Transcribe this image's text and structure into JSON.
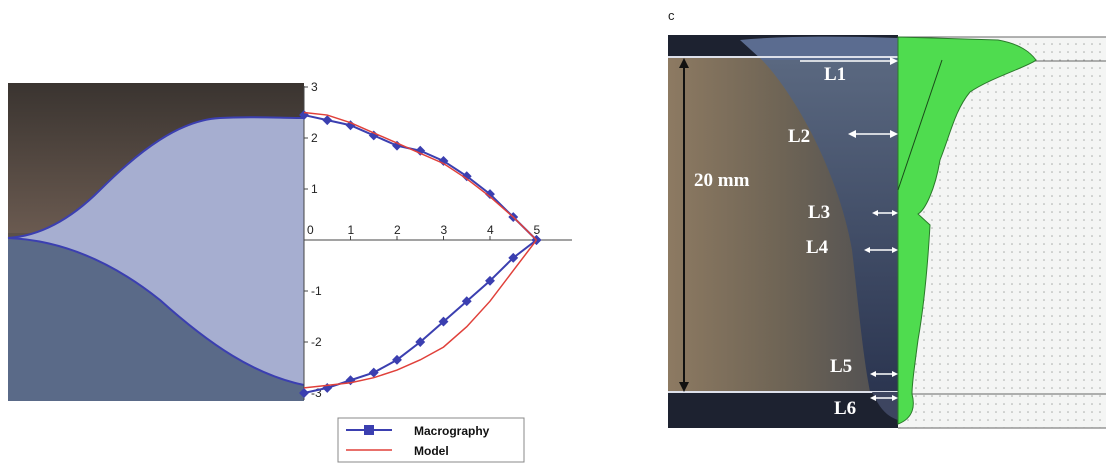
{
  "left_figure": {
    "legend": {
      "macrography_label": "Macrography",
      "model_label": "Model"
    },
    "x_ticks": [
      "0",
      "1",
      "2",
      "3",
      "4",
      "5"
    ],
    "y_ticks": [
      "3",
      "2",
      "1",
      "-1",
      "-2",
      "-3"
    ],
    "colors": {
      "macrography": "#3b3fb0",
      "model": "#e0403a"
    }
  },
  "right_figure": {
    "panel_letter": "c",
    "thickness_label": "20 mm",
    "markers": [
      "L1",
      "L2",
      "L3",
      "L4",
      "L5",
      "L6"
    ],
    "colors": {
      "profile_fill": "#4fdc4f",
      "grid_dot": "#9aa0a0"
    }
  },
  "chart_data": {
    "type": "line",
    "title": "",
    "xlabel": "",
    "ylabel": "",
    "xlim": [
      0,
      5.5
    ],
    "ylim": [
      -3,
      3
    ],
    "series": [
      {
        "name": "Macrography",
        "upper": {
          "x": [
            0,
            0.5,
            1,
            1.5,
            2,
            2.5,
            3,
            3.5,
            4,
            4.5,
            5
          ],
          "y": [
            2.45,
            2.35,
            2.25,
            2.05,
            1.85,
            1.75,
            1.55,
            1.25,
            0.9,
            0.45,
            0
          ]
        },
        "lower": {
          "x": [
            0,
            0.5,
            1,
            1.5,
            2,
            2.5,
            3,
            3.5,
            4,
            4.5,
            5
          ],
          "y": [
            -3.0,
            -2.9,
            -2.75,
            -2.6,
            -2.35,
            -2.0,
            -1.6,
            -1.2,
            -0.8,
            -0.35,
            0
          ]
        }
      },
      {
        "name": "Model",
        "upper": {
          "x": [
            0,
            0.5,
            1,
            1.5,
            2,
            2.5,
            3,
            3.5,
            4,
            4.5,
            5
          ],
          "y": [
            2.5,
            2.45,
            2.3,
            2.1,
            1.9,
            1.7,
            1.5,
            1.2,
            0.85,
            0.45,
            0
          ]
        },
        "lower": {
          "x": [
            0,
            0.5,
            1,
            1.5,
            2,
            2.5,
            3,
            3.5,
            4,
            4.5,
            5
          ],
          "y": [
            -2.9,
            -2.85,
            -2.8,
            -2.7,
            -2.55,
            -2.35,
            -2.1,
            -1.7,
            -1.2,
            -0.6,
            0
          ]
        }
      }
    ]
  }
}
